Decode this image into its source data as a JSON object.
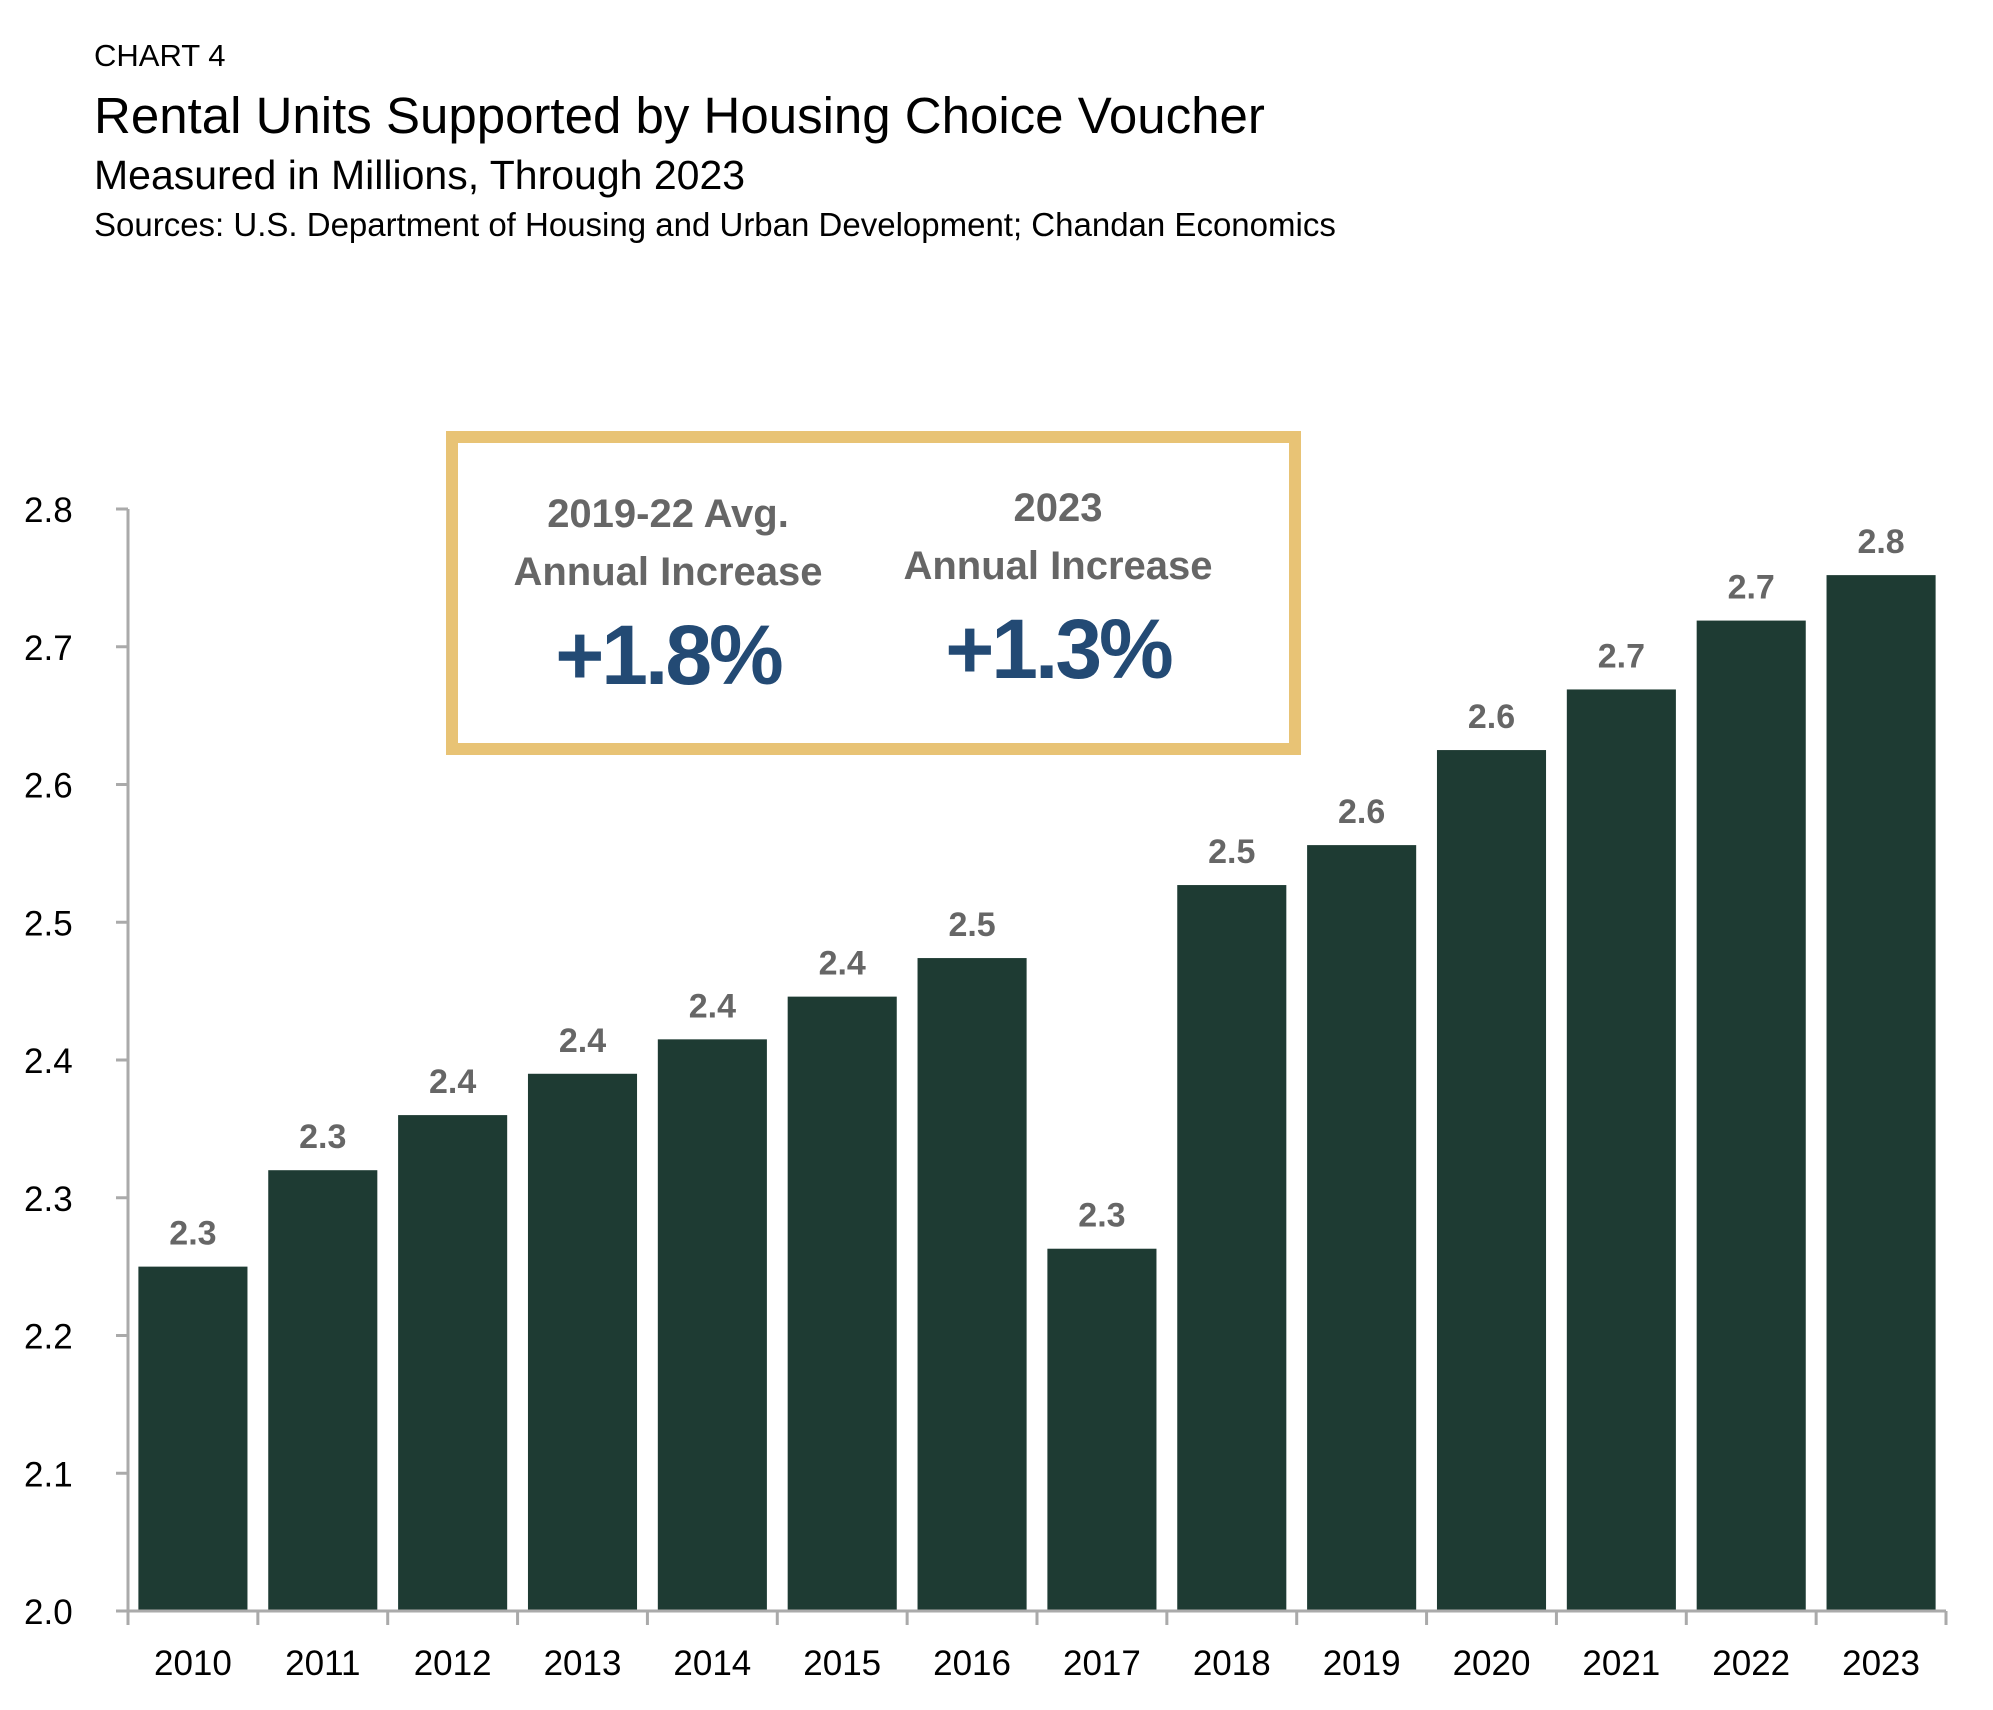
{
  "header": {
    "label": "CHART 4",
    "title": "Rental Units Supported by Housing Choice Voucher",
    "subtitle": "Measured in Millions, Through 2023",
    "source": "Sources: U.S. Department of Housing and Urban Development; Chandan Economics"
  },
  "callout": {
    "left": {
      "line1": "2019-22 Avg.",
      "line2": "Annual Increase",
      "value": "+1.8%"
    },
    "right": {
      "line1": "2023",
      "line2": "Annual Increase",
      "value": "+1.3%"
    }
  },
  "colors": {
    "bar": "#1e3b33",
    "label": "#666666",
    "accent": "#e8c375",
    "value": "#234a74",
    "axis": "#aaaaaa"
  },
  "chart_data": {
    "type": "bar",
    "title": "Rental Units Supported by Housing Choice Voucher",
    "xlabel": "",
    "ylabel": "",
    "ylim": [
      2.0,
      2.8
    ],
    "yticks": [
      "2.0",
      "2.1",
      "2.2",
      "2.3",
      "2.4",
      "2.5",
      "2.6",
      "2.7",
      "2.8"
    ],
    "grid": false,
    "categories": [
      "2010",
      "2011",
      "2012",
      "2013",
      "2014",
      "2015",
      "2016",
      "2017",
      "2018",
      "2019",
      "2020",
      "2021",
      "2022",
      "2023"
    ],
    "values": [
      2.25,
      2.32,
      2.36,
      2.39,
      2.415,
      2.446,
      2.474,
      2.263,
      2.527,
      2.556,
      2.625,
      2.669,
      2.719,
      2.752
    ],
    "data_labels": [
      "2.3",
      "2.3",
      "2.4",
      "2.4",
      "2.4",
      "2.4",
      "2.5",
      "2.3",
      "2.5",
      "2.6",
      "2.6",
      "2.7",
      "2.7",
      "2.8"
    ]
  }
}
